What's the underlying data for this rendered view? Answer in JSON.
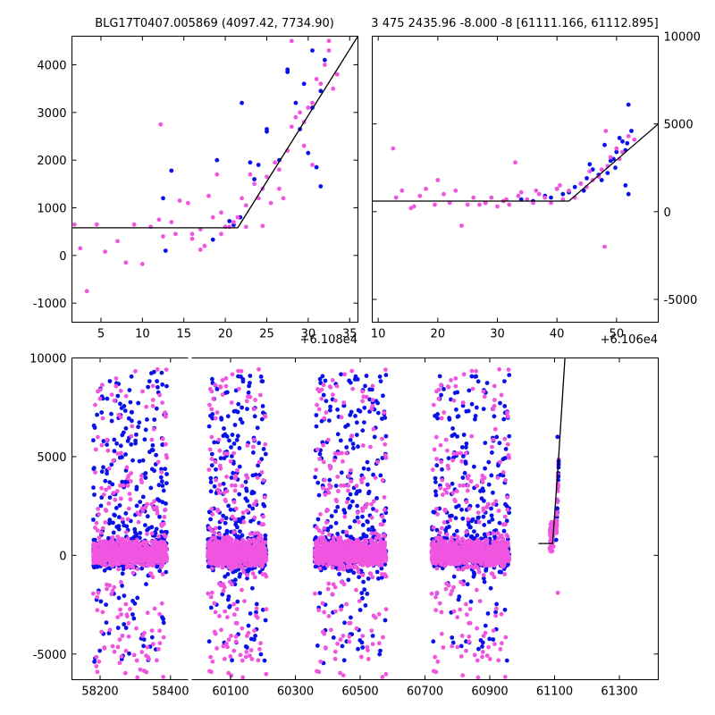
{
  "chart_data": [
    {
      "id": "top_left",
      "type": "scatter",
      "title": "BLG17T0407.005869 (4097.42, 7734.90)",
      "x_offset_label": "+6.108e4",
      "xlim": [
        1.5,
        36.0
      ],
      "ylim": [
        -1400,
        4600
      ],
      "xticks": [
        5,
        10,
        15,
        20,
        25,
        30,
        35
      ],
      "yticks": [
        -1000,
        0,
        1000,
        2000,
        3000,
        4000
      ],
      "yaxis_side": "left",
      "model_line": {
        "x": [
          1.5,
          21.5,
          36.0
        ],
        "y": [
          580,
          580,
          4600
        ]
      },
      "series": [
        {
          "name": "blue",
          "color": "#0a10e8",
          "x": [
            12.5,
            13.5,
            19.0,
            20.5,
            21.0,
            22.0,
            23.0,
            24.0,
            25.0,
            25.0,
            26.5,
            27.5,
            27.5,
            28.5,
            29.0,
            29.5,
            30.0,
            30.5,
            30.5,
            31.0,
            31.5,
            31.5,
            32.0,
            12.8,
            18.5,
            21.8,
            23.5
          ],
          "y": [
            1200,
            1780,
            2000,
            720,
            640,
            3200,
            1950,
            1900,
            2650,
            2600,
            2000,
            3900,
            3850,
            3200,
            2650,
            3600,
            2150,
            3100,
            4300,
            1850,
            3450,
            1450,
            4100,
            100,
            330,
            800,
            1600
          ]
        },
        {
          "name": "magenta",
          "color": "#f055e0",
          "x": [
            1.8,
            2.5,
            3.3,
            4.5,
            5.5,
            7.0,
            8.0,
            9.0,
            10.0,
            11.0,
            12.0,
            12.5,
            13.5,
            14.0,
            14.5,
            15.5,
            16.0,
            17.0,
            17.5,
            18.0,
            18.5,
            19.0,
            19.5,
            20.0,
            20.5,
            21.0,
            21.5,
            22.0,
            22.5,
            23.0,
            23.5,
            24.0,
            24.5,
            25.0,
            25.5,
            26.0,
            26.5,
            27.0,
            27.5,
            28.0,
            28.0,
            28.5,
            29.0,
            29.5,
            30.0,
            30.5,
            31.0,
            31.5,
            32.0,
            32.5,
            33.0,
            33.5,
            12.2,
            16.0,
            17.0,
            19.5,
            22.5,
            24.5,
            26.5,
            29.5,
            30.5,
            32.5
          ],
          "y": [
            650,
            150,
            -750,
            650,
            80,
            300,
            -150,
            650,
            -180,
            600,
            750,
            400,
            700,
            450,
            1150,
            1100,
            350,
            550,
            200,
            1250,
            800,
            1700,
            900,
            600,
            600,
            700,
            800,
            1200,
            1050,
            1700,
            1500,
            1200,
            1400,
            1650,
            1100,
            1950,
            1800,
            1200,
            2200,
            2700,
            4500,
            2900,
            3000,
            2800,
            3100,
            3200,
            3700,
            3600,
            4000,
            4300,
            3500,
            3800,
            2750,
            450,
            120,
            450,
            600,
            620,
            1400,
            2300,
            1900,
            4500
          ]
        }
      ]
    },
    {
      "id": "top_right",
      "type": "scatter",
      "title": "3 475 2435.96 -8.000 -8 [61111.166, 61112.895]",
      "x_offset_label": "+6.106e4",
      "xlim": [
        9,
        57
      ],
      "ylim": [
        -6300,
        10000
      ],
      "xticks": [
        10,
        20,
        30,
        40,
        50
      ],
      "yticks": [
        -5000,
        0,
        5000,
        10000
      ],
      "yaxis_side": "right",
      "model_line": {
        "x": [
          9,
          42,
          57
        ],
        "y": [
          600,
          600,
          5000
        ]
      },
      "series": [
        {
          "name": "blue",
          "color": "#0a10e8",
          "x": [
            28.0,
            34.0,
            36.0,
            38.0,
            39.0,
            40.0,
            41.0,
            42.0,
            43.0,
            44.0,
            45.0,
            45.5,
            46.0,
            47.0,
            48.0,
            48.5,
            49.0,
            49.5,
            50.0,
            50.5,
            51.0,
            51.5,
            51.5,
            52.0,
            52.5,
            52.0,
            44.5,
            47.5,
            49.8,
            51.8
          ],
          "y": [
            500,
            700,
            600,
            900,
            800,
            1300,
            1000,
            1100,
            1400,
            1600,
            1900,
            2700,
            2400,
            2100,
            3800,
            2200,
            2900,
            3000,
            3400,
            4200,
            4000,
            3500,
            1500,
            6100,
            4600,
            1000,
            1200,
            1800,
            2500,
            3900
          ]
        },
        {
          "name": "magenta",
          "color": "#f055e0",
          "x": [
            12.5,
            13.0,
            14.0,
            15.5,
            16.0,
            17.0,
            18.0,
            19.5,
            20.0,
            21.0,
            22.0,
            23.0,
            24.0,
            25.0,
            26.0,
            27.0,
            28.0,
            29.0,
            30.0,
            31.0,
            32.0,
            33.0,
            34.0,
            35.0,
            36.0,
            37.0,
            38.0,
            39.0,
            40.0,
            41.0,
            42.0,
            43.0,
            44.0,
            45.0,
            46.0,
            47.0,
            47.5,
            48.0,
            48.5,
            49.0,
            50.0,
            51.0,
            52.0,
            53.0,
            40.5,
            36.5,
            33.5,
            31.5,
            45.5,
            48.2,
            50.5
          ],
          "y": [
            3600,
            800,
            1200,
            200,
            300,
            900,
            1300,
            400,
            1800,
            1000,
            500,
            1200,
            -800,
            400,
            800,
            400,
            500,
            800,
            300,
            600,
            400,
            2800,
            1100,
            700,
            500,
            1000,
            800,
            500,
            1300,
            700,
            1200,
            800,
            1600,
            1400,
            1800,
            2000,
            2400,
            -2000,
            2600,
            3100,
            3600,
            3400,
            4300,
            4100,
            1500,
            1200,
            900,
            700,
            2300,
            4600,
            3000
          ]
        }
      ]
    },
    {
      "id": "bottom",
      "type": "scatter",
      "title": "",
      "xlim_left": [
        58120,
        58450
      ],
      "xlim_right": [
        59980,
        61420
      ],
      "ylim": [
        -6300,
        10000
      ],
      "xticks": [
        58200,
        58400,
        60100,
        60300,
        60500,
        60700,
        60900,
        61100,
        61300
      ],
      "yticks": [
        -5000,
        0,
        5000,
        10000
      ],
      "yaxis_side": "left",
      "seasons": [
        [
          58180,
          58390
        ],
        [
          60030,
          60210
        ],
        [
          60360,
          60580
        ],
        [
          60720,
          60960
        ]
      ],
      "model_line": {
        "x": [
          61050,
          61094,
          61112,
          61132
        ],
        "y": [
          600,
          600,
          4800,
          10000
        ]
      },
      "series": [
        {
          "name": "blue",
          "color": "#0a10e8"
        },
        {
          "name": "magenta",
          "color": "#f055e0"
        }
      ]
    }
  ]
}
